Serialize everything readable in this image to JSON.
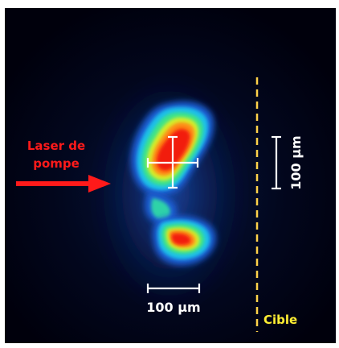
{
  "labels": {
    "pump_laser": [
      "Laser de",
      "pompe"
    ],
    "scale_horizontal": "100 µm",
    "scale_vertical": "100 µm",
    "target": "Cible"
  },
  "colors": {
    "background": "#000010",
    "pump_laser": "#ff1a1a",
    "scale_bars": "#ffffff",
    "target_line": "#ffd24a",
    "target_label": "#ffee33"
  }
}
